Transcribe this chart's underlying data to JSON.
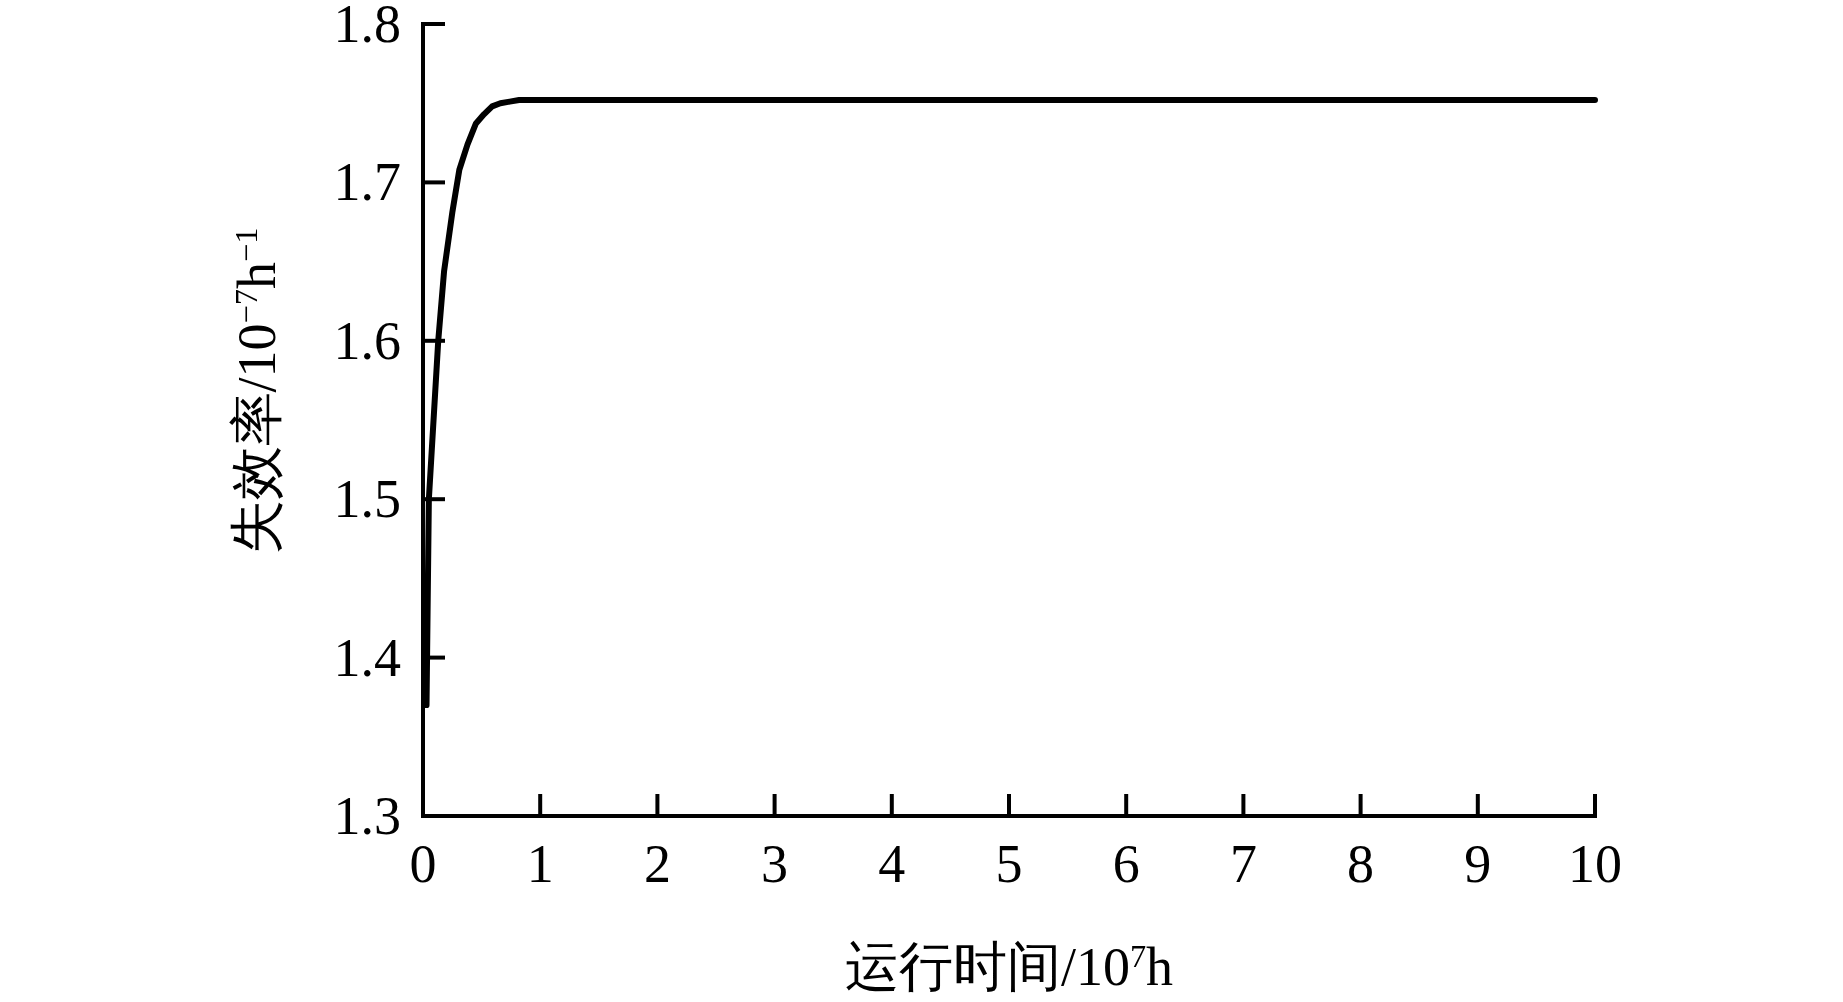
{
  "chart_data": {
    "type": "line",
    "xlabel": "运行时间/10$^{7}$h",
    "ylabel": "失效率/10$^{−7}$h$^{−1}$",
    "xlim": [
      0,
      10
    ],
    "ylim": [
      1.3,
      1.8
    ],
    "xticks": [
      0,
      1,
      2,
      3,
      4,
      5,
      6,
      7,
      8,
      9,
      10
    ],
    "yticks": [
      1.3,
      1.4,
      1.5,
      1.6,
      1.7,
      1.8
    ],
    "line_style": "solid",
    "series": [
      {
        "color": "#000000",
        "x": [
          0.03,
          0.05,
          0.13,
          0.18,
          0.25,
          0.31,
          0.38,
          0.45,
          0.52,
          0.59,
          0.66,
          0.74,
          0.82,
          0.92,
          2,
          4,
          6,
          8,
          10
        ],
        "values": [
          1.37,
          1.5,
          1.6,
          1.644,
          1.681,
          1.708,
          1.724,
          1.737,
          1.743,
          1.748,
          1.75,
          1.751,
          1.752,
          1.752,
          1.752,
          1.752,
          1.752,
          1.752,
          1.752
        ]
      }
    ]
  }
}
